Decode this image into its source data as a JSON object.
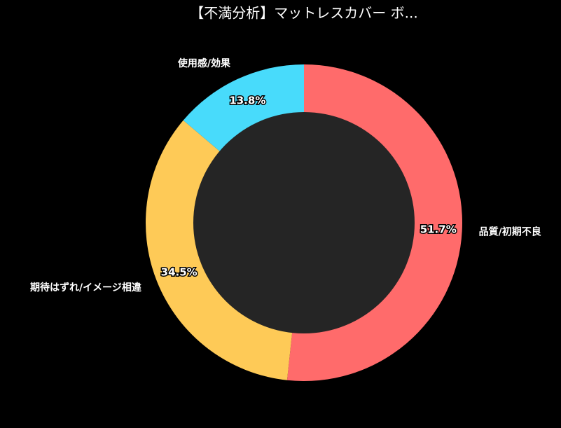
{
  "chart_data": {
    "type": "donut",
    "title": "【不満分析】マットレスカバー ボ...",
    "categories": [
      "品質/初期不良",
      "期待はずれ/イメージ相違",
      "使用感/効果"
    ],
    "values": [
      51.7,
      34.5,
      13.8
    ],
    "value_labels": [
      "51.7%",
      "34.5%",
      "13.8%"
    ],
    "colors": [
      "#ff6b6b",
      "#feca57",
      "#48dbfb"
    ]
  }
}
